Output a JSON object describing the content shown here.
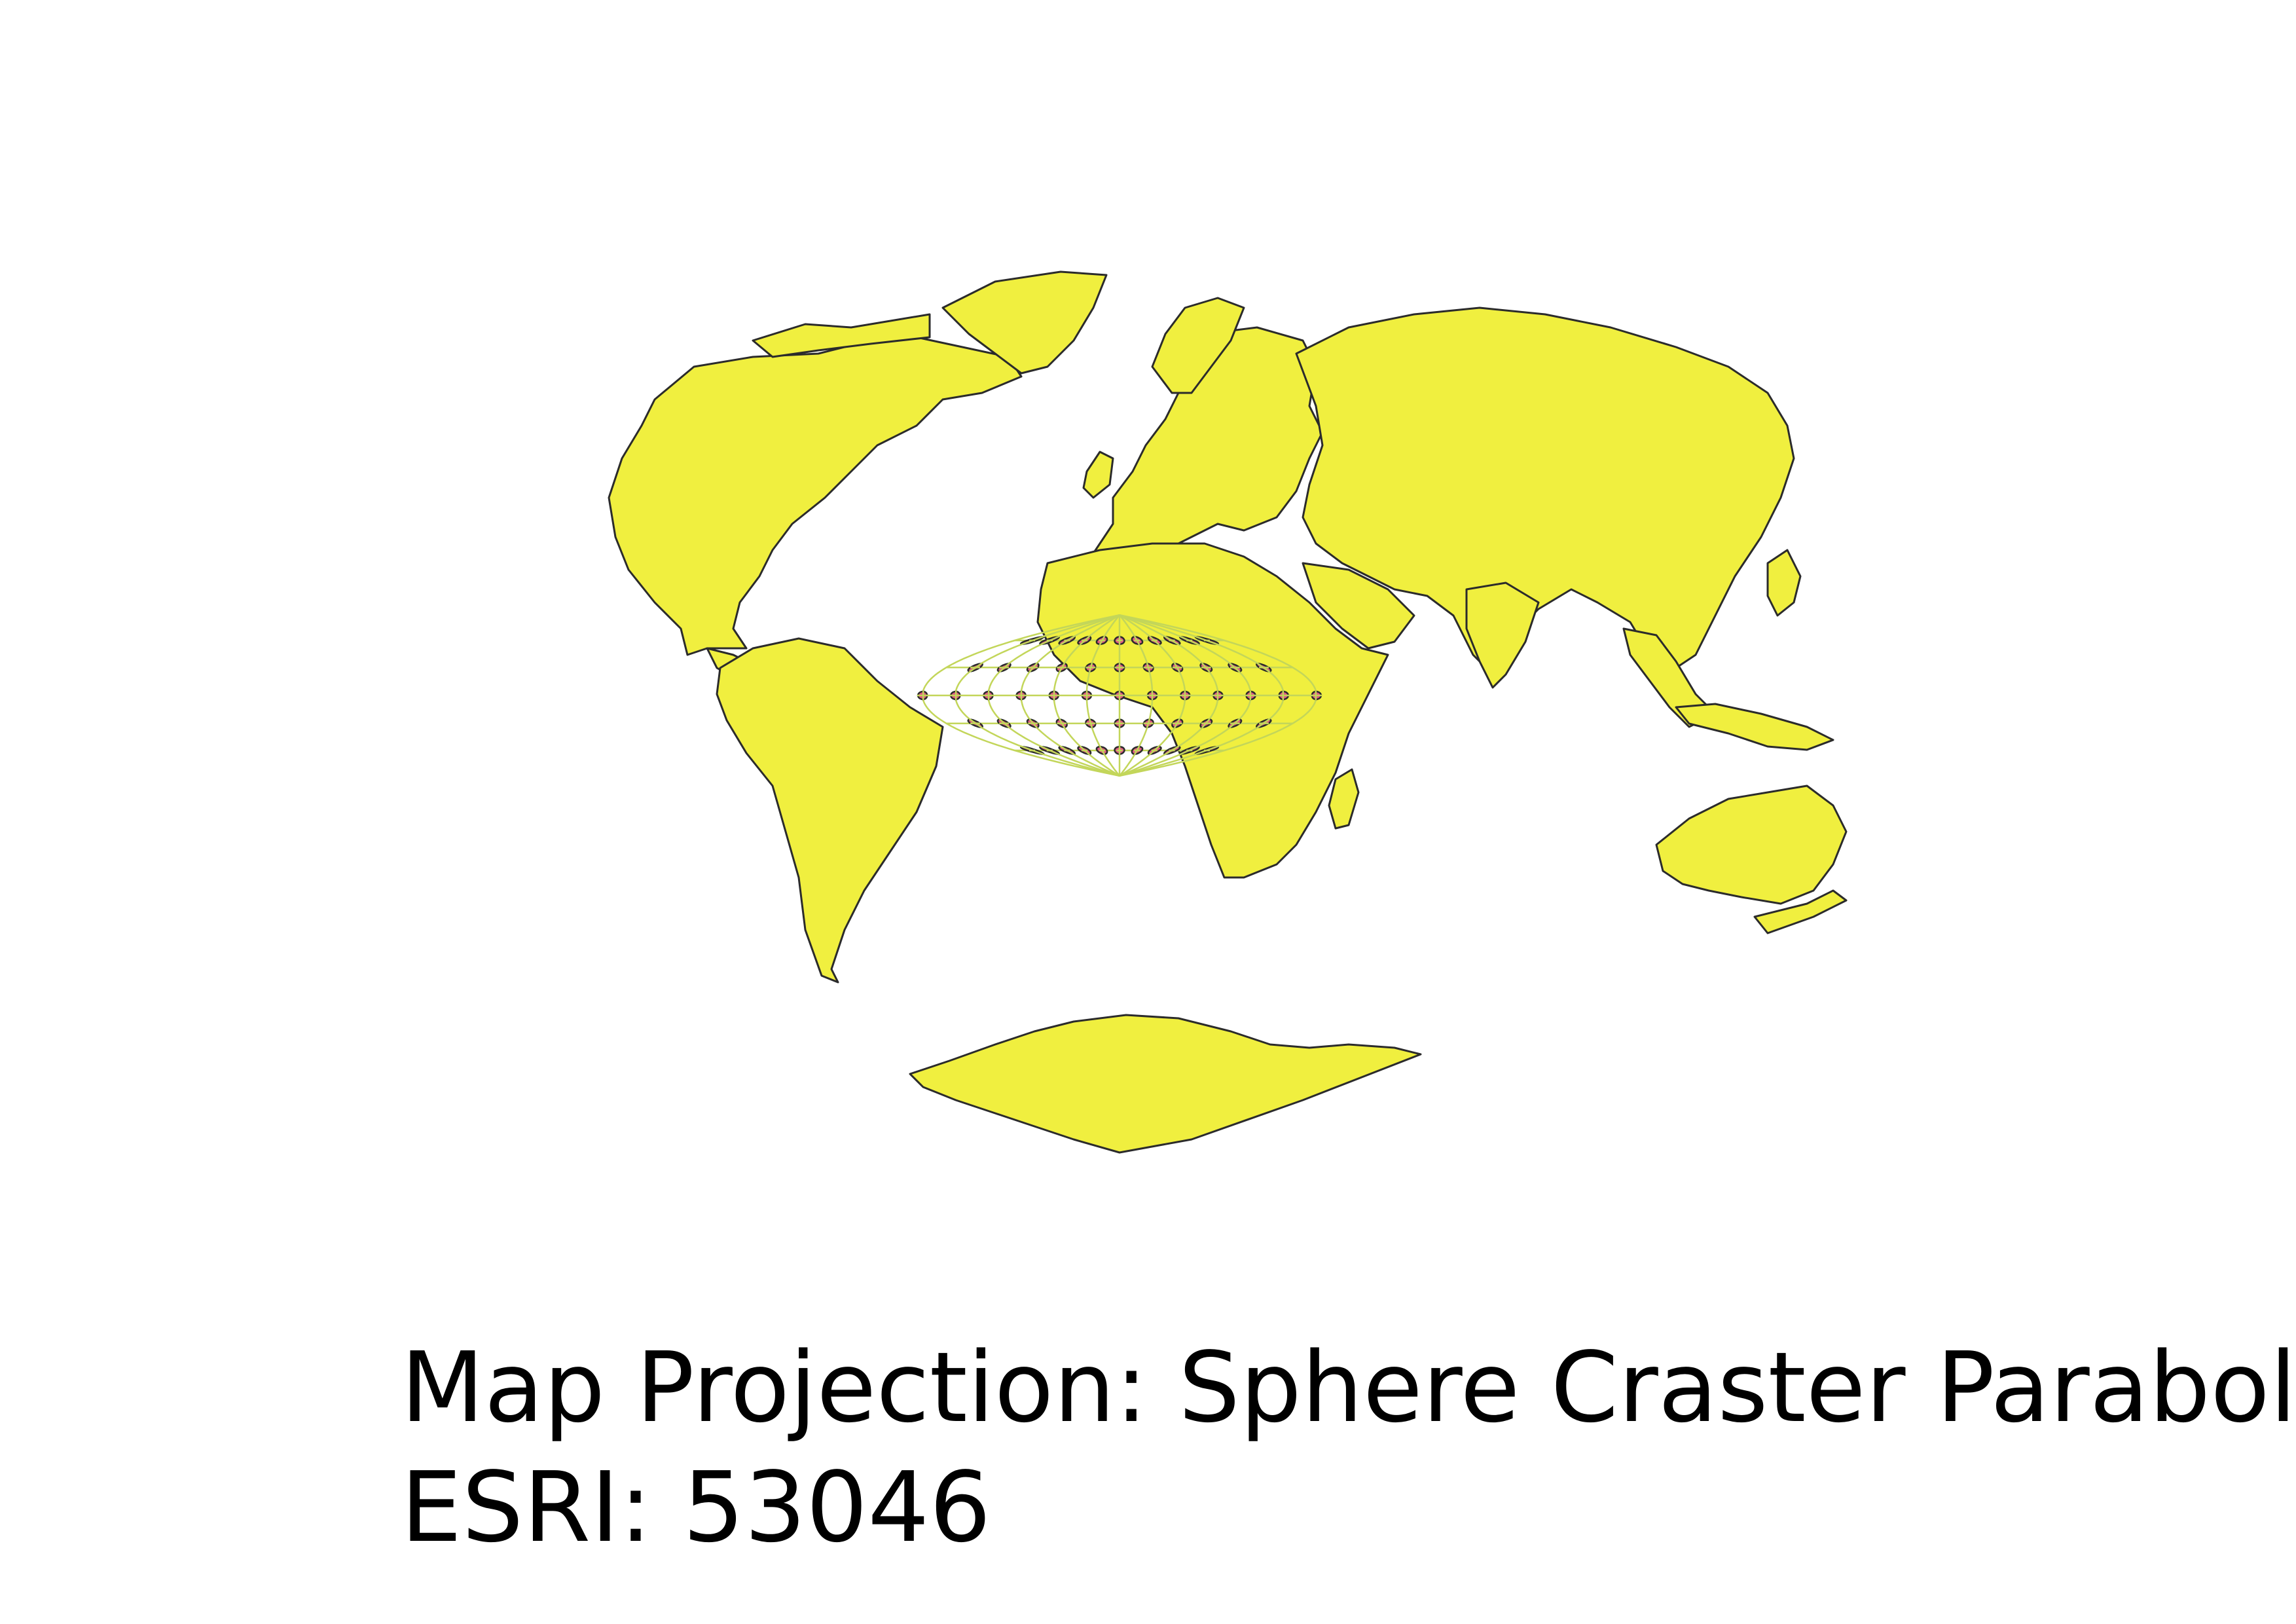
{
  "map": {
    "projection_name": "Sphere Craster Parabolic",
    "projection_code": "ESRI: 53046",
    "colors": {
      "land_fill": "#f0ef3f",
      "land_stroke": "#2b2b2b",
      "graticule": "#c3d65a",
      "ellipse_fill": "#e05a84",
      "ellipse_stroke": "#2b2b2b",
      "background": "#ffffff"
    },
    "graticule": {
      "latitudes_deg": [
        -60,
        -30,
        0,
        30,
        60
      ],
      "longitudes_deg": [
        -180,
        -150,
        -120,
        -90,
        -60,
        -30,
        0,
        30,
        60,
        90,
        120,
        150,
        180
      ]
    },
    "tissot_indicatrix": {
      "latitudes_deg": [
        -60,
        -30,
        0,
        30,
        60
      ],
      "longitudes_deg": [
        -150,
        -120,
        -90,
        -60,
        -30,
        0,
        30,
        60,
        90,
        120,
        150
      ],
      "edge_longitudes_deg": [
        -180,
        180
      ]
    }
  },
  "caption": {
    "line1": "Map Projection: Sphere Craster Parabolic",
    "line2": "ESRI: 53046"
  }
}
